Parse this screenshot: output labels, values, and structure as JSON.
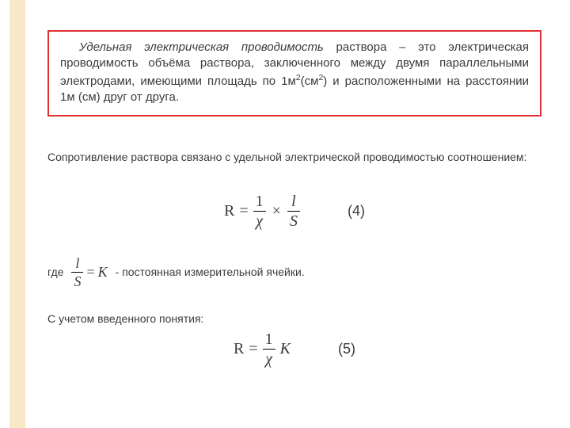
{
  "colors": {
    "strip": "#f8e8c8",
    "box_border": "#e03030",
    "text": "#3b3b3b",
    "bg": "#ffffff"
  },
  "def": {
    "lead": "Удельная электрическая проводимость",
    "rest_a": " раствора – это электрическая проводимость объёма раствора, заключенного между двумя параллельными электродами, имеющими площадь по 1м",
    "sup1": "2",
    "paren_a": "(см",
    "sup2": "2",
    "rest_b": ") и расположенными на расстоянии 1м (см) друг от друга."
  },
  "p1": "Сопротивление раствора связано с удельной электрической проводимостью соотношением:",
  "eq4": {
    "R": "R",
    "eq": " = ",
    "one": "1",
    "chi": "χ",
    "times": "×",
    "l": "l",
    "S": "S",
    "label": "(4)"
  },
  "where": {
    "pre": "где",
    "l": "l",
    "S": "S",
    "eq": " = ",
    "K": "K",
    "post": " - постоянная измерительной ячейки."
  },
  "p2": "С учетом введенного понятия:",
  "eq5": {
    "R": "R",
    "eq": " = ",
    "one": "1",
    "chi": "χ",
    "K": "K",
    "label": "(5)"
  }
}
